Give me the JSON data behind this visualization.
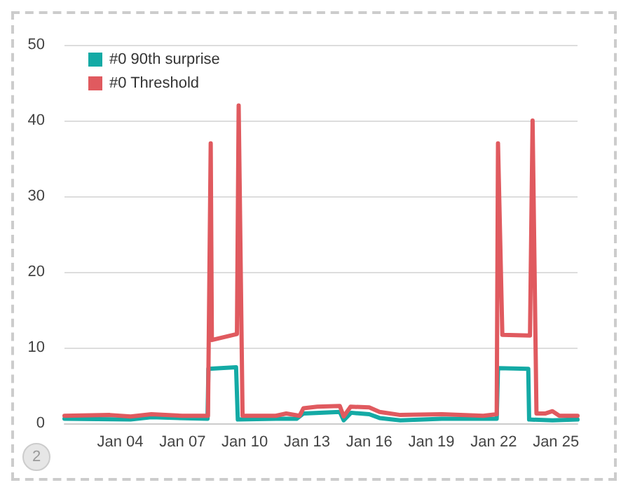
{
  "chart_data": {
    "type": "line",
    "legend": "top left",
    "grid": "y",
    "marker": "none",
    "line_style": "solid",
    "xlim": [
      "--01-01T07:30",
      "--01-26T01:00"
    ],
    "xticks": [
      {
        "value": "--01-04",
        "label": "Jan 04"
      },
      {
        "value": "--01-07",
        "label": "Jan 07"
      },
      {
        "value": "--01-10",
        "label": "Jan 10"
      },
      {
        "value": "--01-13",
        "label": "Jan 13"
      },
      {
        "value": "--01-16",
        "label": "Jan 16"
      },
      {
        "value": "--01-19",
        "label": "Jan 19"
      },
      {
        "value": "--01-22",
        "label": "Jan 22"
      },
      {
        "value": "--01-25",
        "label": "Jan 25"
      }
    ],
    "ylim": [
      0,
      50
    ],
    "yticks": [
      0,
      10,
      20,
      30,
      40,
      50
    ],
    "annotations": [
      "2"
    ],
    "series": [
      {
        "name": "#0 90th surprise",
        "color": "#14aaa5",
        "x": [
          "--01-01T07:30",
          "--01-04T12:00",
          "--01-05T12:00",
          "--01-08T05:00",
          "--01-08T06:00",
          "--01-09T14:00",
          "--01-09T16:00",
          "--01-11T12:00",
          "--01-12T12:00",
          "--01-12T20:00",
          "--01-14T14:00",
          "--01-14T18:30",
          "--01-15T03:00",
          "--01-16T00:00",
          "--01-16T12:00",
          "--01-17T12:00",
          "--01-19T12:00",
          "--01-22T03:30",
          "--01-22T05:00",
          "--01-23T16:00",
          "--01-23T17:00",
          "--01-24T20:00",
          "--01-26T01:00"
        ],
        "values": [
          0.6,
          0.5,
          0.8,
          0.6,
          7.2,
          7.4,
          0.5,
          0.6,
          0.6,
          1.3,
          1.5,
          0.4,
          1.4,
          1.2,
          0.7,
          0.4,
          0.6,
          0.6,
          7.3,
          7.2,
          0.5,
          0.4,
          0.5
        ]
      },
      {
        "name": "#0 Threshold",
        "color": "#e05a5f",
        "x": [
          "--01-01T07:30",
          "--01-03T12:00",
          "--01-04T12:00",
          "--01-05T12:00",
          "--01-07T00:00",
          "--01-08T05:30",
          "--01-08T08:40",
          "--01-08T10:00",
          "--01-09T15:00",
          "--01-09T17:00",
          "--01-09T21:30",
          "--01-11T12:00",
          "--01-12T00:00",
          "--01-12T15:30",
          "--01-12T20:00",
          "--01-13T12:00",
          "--01-14T14:00",
          "--01-14T18:30",
          "--01-15T02:30",
          "--01-16T00:00",
          "--01-16T12:00",
          "--01-17T12:00",
          "--01-19T12:00",
          "--01-21T12:00",
          "--01-22T03:30",
          "--01-22T05:00",
          "--01-22T10:00",
          "--01-23T18:00",
          "--01-23T21:00",
          "--01-24T01:30",
          "--01-24T12:00",
          "--01-24T20:00",
          "--01-25T04:00",
          "--01-26T01:00"
        ],
        "values": [
          1.0,
          1.1,
          0.9,
          1.2,
          1.0,
          1.0,
          37,
          11.0,
          11.8,
          42,
          1.0,
          1.0,
          1.3,
          1.0,
          2.0,
          2.2,
          2.3,
          0.9,
          2.2,
          2.1,
          1.5,
          1.1,
          1.2,
          1.0,
          1.2,
          37,
          11.7,
          11.6,
          40,
          1.3,
          1.3,
          1.6,
          1.0,
          1.0
        ]
      }
    ]
  }
}
